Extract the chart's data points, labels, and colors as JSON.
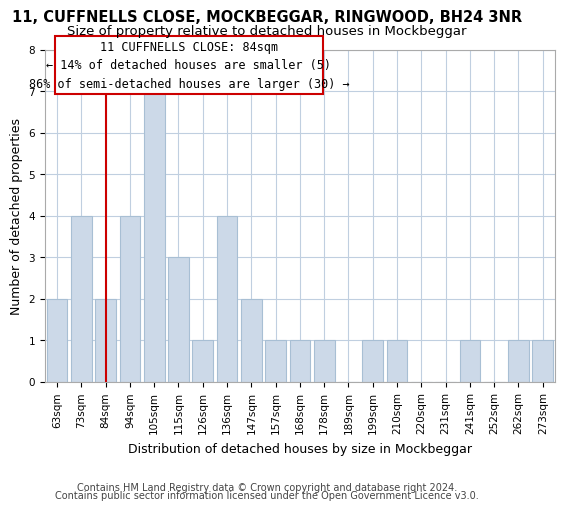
{
  "title": "11, CUFFNELLS CLOSE, MOCKBEGGAR, RINGWOOD, BH24 3NR",
  "subtitle": "Size of property relative to detached houses in Mockbeggar",
  "xlabel": "Distribution of detached houses by size in Mockbeggar",
  "ylabel": "Number of detached properties",
  "bar_labels": [
    "63sqm",
    "73sqm",
    "84sqm",
    "94sqm",
    "105sqm",
    "115sqm",
    "126sqm",
    "136sqm",
    "147sqm",
    "157sqm",
    "168sqm",
    "178sqm",
    "189sqm",
    "199sqm",
    "210sqm",
    "220sqm",
    "231sqm",
    "241sqm",
    "252sqm",
    "262sqm",
    "273sqm"
  ],
  "bar_values": [
    2,
    4,
    2,
    4,
    7,
    3,
    1,
    4,
    2,
    1,
    1,
    1,
    0,
    1,
    1,
    0,
    0,
    1,
    0,
    1,
    1
  ],
  "bar_color": "#ccd9e8",
  "bar_edge_color": "#a8bfd4",
  "vline_x": 2,
  "vline_color": "#cc0000",
  "ylim": [
    0,
    8
  ],
  "yticks": [
    0,
    1,
    2,
    3,
    4,
    5,
    6,
    7,
    8
  ],
  "ann_line1": "11 CUFFNELLS CLOSE: 84sqm",
  "ann_line2": "← 14% of detached houses are smaller (5)",
  "ann_line3": "86% of semi-detached houses are larger (30) →",
  "annotation_box_color": "#ffffff",
  "annotation_box_edge_color": "#cc0000",
  "footer_line1": "Contains HM Land Registry data © Crown copyright and database right 2024.",
  "footer_line2": "Contains public sector information licensed under the Open Government Licence v3.0.",
  "background_color": "#ffffff",
  "grid_color": "#c0cfe0",
  "title_fontsize": 10.5,
  "subtitle_fontsize": 9.5,
  "axis_label_fontsize": 9,
  "tick_fontsize": 7.5,
  "ann_fontsize": 8.5,
  "footer_fontsize": 7
}
